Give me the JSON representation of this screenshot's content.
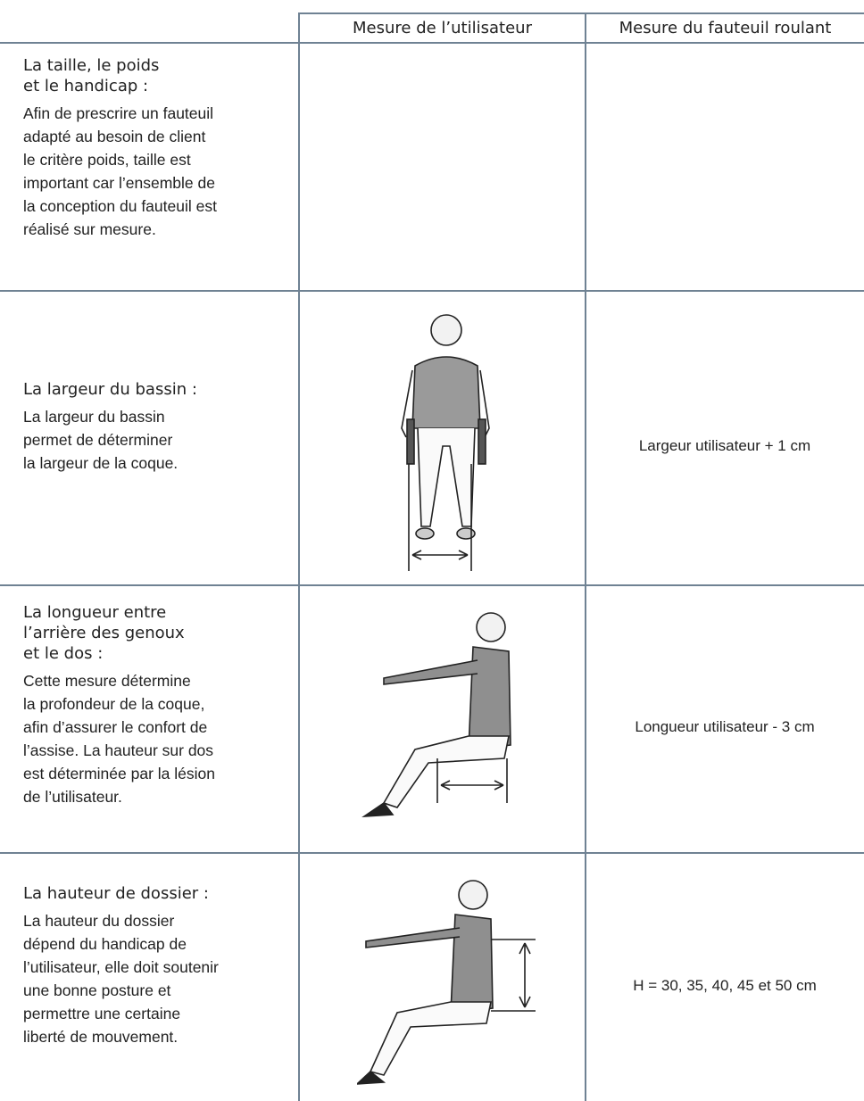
{
  "table": {
    "headers": [
      "Mesure de l’utilisateur",
      "Mesure du fauteuil roulant"
    ],
    "rows": [
      {
        "title": [
          "La taille, le poids",
          "et le handicap :"
        ],
        "body": [
          "Afin de prescrire un fauteuil",
          "adapté au besoin de client",
          "le critère poids, taille est",
          "important car l’ensemble de",
          "la conception du fauteuil est",
          "réalisé sur mesure."
        ]
      },
      {
        "title": [
          "La largeur du bassin :"
        ],
        "body": [
          "La largeur du bassin",
          "permet de déterminer",
          "la largeur de la coque."
        ],
        "wheelchair_measure": "Largeur utilisateur + 1 cm"
      },
      {
        "title": [
          "La longueur entre",
          "l’arrière des genoux",
          "et le dos :"
        ],
        "body": [
          "Cette mesure détermine",
          "la profondeur de la coque,",
          "afin d’assurer le confort de",
          "l’assise. La hauteur sur dos",
          "est déterminée par la lésion",
          "de l’utilisateur."
        ],
        "wheelchair_measure": "Longueur utilisateur - 3 cm"
      },
      {
        "title": [
          "La hauteur de dossier :"
        ],
        "body": [
          "La hauteur du dossier",
          "dépend du handicap de",
          "l’utilisateur, elle doit soutenir",
          "une bonne posture et",
          "permettre une certaine",
          "liberté de mouvement."
        ],
        "wheelchair_measure": "H = 30, 35, 40, 45 et 50 cm"
      }
    ]
  }
}
